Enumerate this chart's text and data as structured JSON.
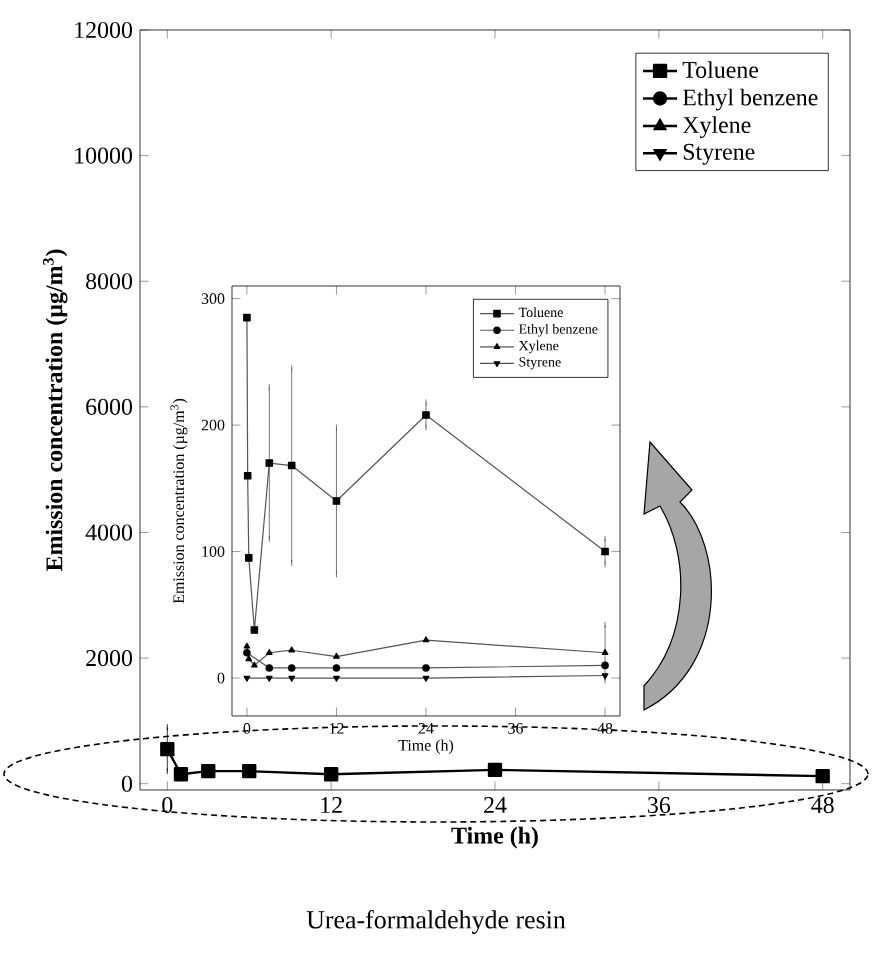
{
  "chart_data": [
    {
      "type": "line",
      "xlabel": "Time (h)",
      "ylabel": "Emission concentration (µg/m$^{3}$)",
      "xlim": [
        -2,
        50
      ],
      "ylim": [
        -100,
        12000
      ],
      "xticks": [
        0,
        12,
        24,
        36,
        48
      ],
      "yticks": [
        0,
        2000,
        4000,
        6000,
        8000,
        10000,
        12000
      ],
      "legend": "top right",
      "grid": false,
      "annotations": [
        "Urea-formaldehyde resin"
      ],
      "series": [
        {
          "name": "Toluene",
          "color": "#000000",
          "marker": "square",
          "line_style": "solid",
          "x": [
            0,
            1,
            3,
            6,
            12,
            24,
            48
          ],
          "values": [
            550,
            150,
            200,
            200,
            150,
            220,
            120
          ],
          "errors": [
            350,
            null,
            null,
            null,
            null,
            null,
            null
          ]
        },
        {
          "name": "Ethyl benzene",
          "color": "#000000",
          "marker": "circle",
          "line_style": "solid",
          "values": [
            null,
            null,
            null,
            null,
            null,
            null,
            null
          ]
        },
        {
          "name": "Xylene",
          "color": "#000000",
          "marker": "triangle",
          "line_style": "solid",
          "values": [
            null,
            null,
            null,
            null,
            null,
            null,
            null
          ]
        },
        {
          "name": "Styrene",
          "color": "#000000",
          "marker": "triangle-down",
          "line_style": "solid",
          "values": [
            null,
            null,
            null,
            null,
            null,
            null,
            null
          ]
        }
      ]
    },
    {
      "type": "line",
      "xlabel": "Time (h)",
      "ylabel": "Emission concentration (µg/m$^{3}$)",
      "xlim": [
        -2,
        50
      ],
      "ylim": [
        -30,
        310
      ],
      "xticks": [
        0,
        12,
        24,
        36,
        48
      ],
      "yticks": [
        0,
        100,
        200,
        300
      ],
      "legend": "top right",
      "grid": false,
      "series": [
        {
          "name": "Toluene",
          "color": "#555555",
          "marker": "square",
          "line_style": "solid",
          "x": [
            0,
            0.1,
            0.25,
            1,
            3,
            6,
            12,
            24,
            48
          ],
          "values": [
            285,
            160,
            95,
            38,
            170,
            168,
            140,
            208,
            100
          ],
          "errors": [
            null,
            null,
            null,
            null,
            60,
            77,
            58,
            10,
            10
          ]
        },
        {
          "name": "Ethyl benzene",
          "color": "#555555",
          "marker": "circle",
          "line_style": "solid",
          "x": [
            0,
            3,
            6,
            12,
            24,
            48
          ],
          "values": [
            20,
            8,
            8,
            8,
            8,
            10
          ]
        },
        {
          "name": "Xylene",
          "color": "#555555",
          "marker": "triangle",
          "line_style": "solid",
          "x": [
            0,
            0.25,
            1,
            3,
            6,
            12,
            24,
            48
          ],
          "values": [
            25,
            15,
            10,
            20,
            22,
            17,
            30,
            20
          ],
          "errors": [
            null,
            null,
            null,
            null,
            null,
            null,
            null,
            22
          ]
        },
        {
          "name": "Styrene",
          "color": "#555555",
          "marker": "triangle-down",
          "line_style": "solid",
          "x": [
            0,
            3,
            6,
            12,
            24,
            48
          ],
          "values": [
            0,
            0,
            0,
            0,
            0,
            2
          ]
        }
      ]
    }
  ]
}
